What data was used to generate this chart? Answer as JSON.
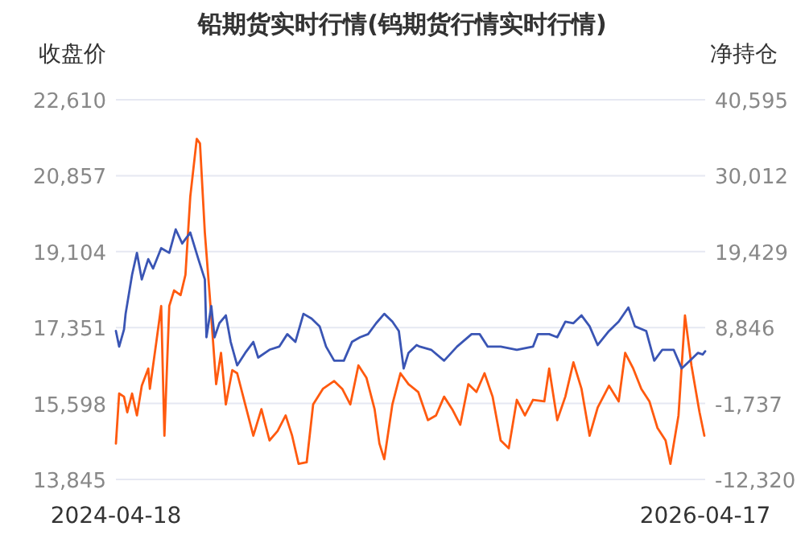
{
  "chart_data": {
    "type": "line",
    "title": "铅期货实时行情(钨期货行情实时行情)",
    "ylabel": "收盘价",
    "y2label": "净持仓",
    "xlim": [
      "2024-04-18",
      "2026-04-17"
    ],
    "xticks": [
      {
        "value": "2024-04-18",
        "label": "2024-04-18"
      },
      {
        "value": "2026-04-17",
        "label": "2026-04-17"
      }
    ],
    "ylim": [
      13845,
      22610
    ],
    "yticks": [
      {
        "value": 13845,
        "label": "13,845"
      },
      {
        "value": 15598,
        "label": "15,598"
      },
      {
        "value": 17351,
        "label": "17,351"
      },
      {
        "value": 19104,
        "label": "19,104"
      },
      {
        "value": 20857,
        "label": "20,857"
      },
      {
        "value": 22610,
        "label": "22,610"
      }
    ],
    "y2lim": [
      -12320,
      40595
    ],
    "y2ticks": [
      {
        "value": -12320,
        "label": "-12,320"
      },
      {
        "value": -1737,
        "label": "-1,737"
      },
      {
        "value": 8846,
        "label": "8,846"
      },
      {
        "value": 19429,
        "label": "19,429"
      },
      {
        "value": 30012,
        "label": "30,012"
      },
      {
        "value": 40595,
        "label": "40,595"
      }
    ],
    "grid": "y",
    "series": [
      {
        "color": "#ff5a0f",
        "axis": "y2",
        "x": [
          "2024-04-18",
          "2024-04-22",
          "2024-04-28",
          "2024-05-02",
          "2024-05-08",
          "2024-05-14",
          "2024-05-20",
          "2024-05-28",
          "2024-05-30",
          "2024-06-07",
          "2024-06-13",
          "2024-06-17",
          "2024-06-23",
          "2024-06-29",
          "2024-07-07",
          "2024-07-13",
          "2024-07-19",
          "2024-07-27",
          "2024-07-31",
          "2024-08-06",
          "2024-08-12",
          "2024-08-20",
          "2024-08-26",
          "2024-09-01",
          "2024-09-09",
          "2024-09-15",
          "2024-09-25",
          "2024-10-05",
          "2024-10-15",
          "2024-10-25",
          "2024-11-04",
          "2024-11-14",
          "2024-11-22",
          "2024-11-30",
          "2024-12-10",
          "2024-12-18",
          "2024-12-30",
          "2025-01-13",
          "2025-01-23",
          "2025-02-02",
          "2025-02-12",
          "2025-02-22",
          "2025-03-04",
          "2025-03-10",
          "2025-03-16",
          "2025-03-26",
          "2025-04-05",
          "2025-04-15",
          "2025-04-27",
          "2025-05-09",
          "2025-05-19",
          "2025-05-29",
          "2025-06-08",
          "2025-06-18",
          "2025-06-28",
          "2025-07-08",
          "2025-07-18",
          "2025-07-28",
          "2025-08-07",
          "2025-08-17",
          "2025-08-27",
          "2025-09-06",
          "2025-09-16",
          "2025-09-30",
          "2025-10-06",
          "2025-10-16",
          "2025-10-26",
          "2025-11-05",
          "2025-11-15",
          "2025-11-25",
          "2025-12-05",
          "2025-12-19",
          "2025-12-31",
          "2026-01-08",
          "2026-01-18",
          "2026-01-28",
          "2026-02-07",
          "2026-02-17",
          "2026-02-27",
          "2026-03-05",
          "2026-03-15",
          "2026-03-23",
          "2026-03-31",
          "2026-04-10",
          "2026-04-16"
        ],
        "values": [
          -7321,
          -351,
          -787,
          -2965,
          -351,
          -3401,
          738,
          3133,
          302,
          6836,
          11845,
          -6232,
          11845,
          14023,
          13370,
          16201,
          27091,
          35150,
          34497,
          22082,
          13370,
          955,
          5311,
          -1876,
          2916,
          2480,
          -1876,
          -6232,
          -2529,
          -6885,
          -5579,
          -3401,
          -6232,
          -10152,
          -9935,
          -1876,
          302,
          1391,
          302,
          -1876,
          3569,
          1827,
          -2529,
          -7321,
          -9499,
          -1876,
          2480,
          955,
          -134,
          -4054,
          -3401,
          -787,
          -2529,
          -4707,
          955,
          -134,
          2480,
          -787,
          -6885,
          -7974,
          -1223,
          -3401,
          -1223,
          -1440,
          3133,
          -4054,
          -787,
          4005,
          302,
          -6232,
          -2312,
          738,
          -1440,
          5311,
          3133,
          302,
          -1440,
          -5143,
          -6885,
          -10152,
          -3401,
          10539,
          3569,
          -2965,
          -6232
        ]
      },
      {
        "color": "#3a55b4",
        "axis": "y",
        "x": [
          "2024-04-18",
          "2024-04-22",
          "2024-04-28",
          "2024-04-30",
          "2024-05-08",
          "2024-05-14",
          "2024-05-20",
          "2024-05-28",
          "2024-06-03",
          "2024-06-13",
          "2024-06-23",
          "2024-07-01",
          "2024-07-09",
          "2024-07-19",
          "2024-07-29",
          "2024-08-06",
          "2024-08-08",
          "2024-08-14",
          "2024-08-18",
          "2024-08-24",
          "2024-09-01",
          "2024-09-07",
          "2024-09-15",
          "2024-09-25",
          "2024-10-05",
          "2024-10-11",
          "2024-10-25",
          "2024-11-06",
          "2024-11-16",
          "2024-11-26",
          "2024-12-06",
          "2024-12-16",
          "2024-12-26",
          "2025-01-03",
          "2025-01-13",
          "2025-01-25",
          "2025-02-04",
          "2025-02-14",
          "2025-02-24",
          "2025-03-06",
          "2025-03-16",
          "2025-03-26",
          "2025-04-03",
          "2025-04-09",
          "2025-04-15",
          "2025-04-25",
          "2025-04-29",
          "2025-05-13",
          "2025-05-29",
          "2025-06-14",
          "2025-07-02",
          "2025-07-12",
          "2025-07-22",
          "2025-08-07",
          "2025-08-27",
          "2025-09-16",
          "2025-09-22",
          "2025-10-06",
          "2025-10-16",
          "2025-10-26",
          "2025-11-05",
          "2025-11-15",
          "2025-11-25",
          "2025-12-05",
          "2025-12-19",
          "2025-12-31",
          "2026-01-12",
          "2026-01-20",
          "2026-02-03",
          "2026-02-13",
          "2026-02-23",
          "2026-03-09",
          "2026-03-19",
          "2026-03-29",
          "2026-04-08",
          "2026-04-14",
          "2026-04-17"
        ],
        "values": [
          17272,
          16911,
          17308,
          17668,
          18570,
          19075,
          18462,
          18931,
          18714,
          19183,
          19075,
          19616,
          19292,
          19544,
          18931,
          18462,
          17127,
          17849,
          17127,
          17452,
          17632,
          17019,
          16478,
          16767,
          17019,
          16658,
          16839,
          16911,
          17199,
          17019,
          17668,
          17560,
          17380,
          16911,
          16586,
          16586,
          17019,
          17127,
          17199,
          17452,
          17668,
          17488,
          17272,
          16406,
          16767,
          16947,
          16911,
          16839,
          16586,
          16911,
          17199,
          17199,
          16911,
          16911,
          16839,
          16911,
          17199,
          17199,
          17127,
          17488,
          17452,
          17632,
          17380,
          16947,
          17272,
          17488,
          17813,
          17380,
          17272,
          16586,
          16839,
          16839,
          16406,
          16586,
          16767,
          16731,
          16803
        ]
      }
    ]
  }
}
